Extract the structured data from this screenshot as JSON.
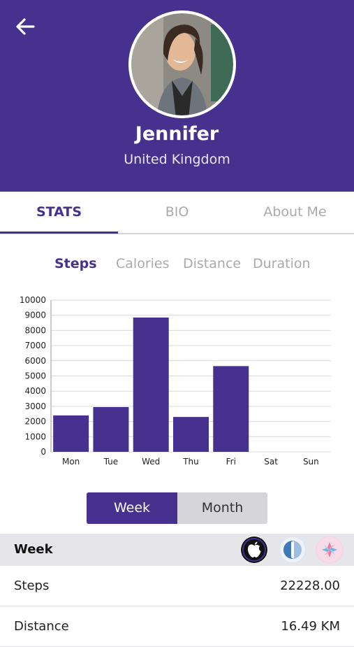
{
  "profile": {
    "name": "Jennifer",
    "country": "United Kingdom"
  },
  "tabs": [
    {
      "label": "STATS",
      "active": true
    },
    {
      "label": "BIO",
      "active": false
    },
    {
      "label": "About Me",
      "active": false
    }
  ],
  "metrics": [
    {
      "label": "Steps",
      "active": true
    },
    {
      "label": "Calories",
      "active": false
    },
    {
      "label": "Distance",
      "active": false
    },
    {
      "label": "Duration",
      "active": false
    }
  ],
  "chart_data": {
    "type": "bar",
    "categories": [
      "Mon",
      "Tue",
      "Wed",
      "Thu",
      "Fri",
      "Sat",
      "Sun"
    ],
    "values": [
      2400,
      2950,
      8850,
      2300,
      5650,
      0,
      0
    ],
    "yticks": [
      0,
      1000,
      2000,
      3000,
      4000,
      5000,
      6000,
      7000,
      8000,
      9000,
      10000
    ],
    "ylim": [
      0,
      10000
    ],
    "bar_color": "#47318f",
    "grid": true
  },
  "period_toggle": {
    "week_label": "Week",
    "month_label": "Month",
    "selected": "Week"
  },
  "summary": {
    "section_title": "Week",
    "source_icons": [
      "apple-health-icon",
      "fitbit-icon",
      "google-fit-icon"
    ],
    "rows": [
      {
        "label": "Steps",
        "value": "22228.00"
      },
      {
        "label": "Distance",
        "value": "16.49 KM"
      }
    ]
  },
  "colors": {
    "brand": "#47318f",
    "inactive_text": "#a9a9ae",
    "section_bg": "#e5e5ea"
  }
}
